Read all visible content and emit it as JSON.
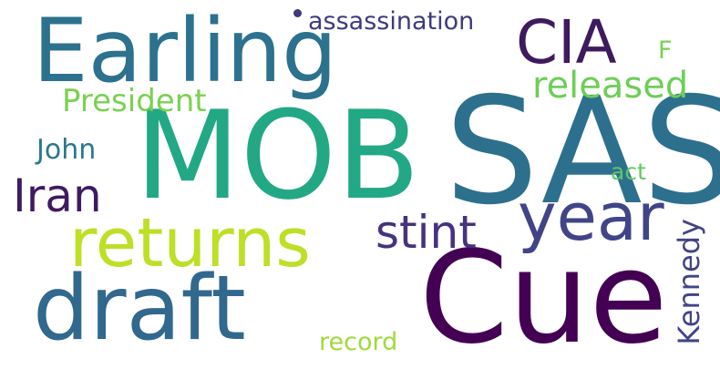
{
  "background": "#ffffff",
  "words": [
    {
      "text": "SAS",
      "color": "#2d708e"
    },
    {
      "text": "MOB",
      "color": "#22a884"
    },
    {
      "text": "Cue",
      "color": "#440154"
    },
    {
      "text": "Earling",
      "color": "#2c728e"
    },
    {
      "text": "draft",
      "color": "#31688e"
    },
    {
      "text": "returns",
      "color": "#bddf26"
    },
    {
      "text": "year",
      "color": "#414487"
    },
    {
      "text": "CIA",
      "color": "#3e1a5e"
    },
    {
      "text": "Iran",
      "color": "#3f1a61"
    },
    {
      "text": "stint",
      "color": "#46327e"
    },
    {
      "text": "released",
      "color": "#6ece58"
    },
    {
      "text": "President",
      "color": "#7ad151"
    },
    {
      "text": "assassination",
      "color": "#3d3a7e"
    },
    {
      "text": "Kennedy",
      "color": "#414487"
    },
    {
      "text": "John",
      "color": "#2a788e"
    },
    {
      "text": "record",
      "color": "#9fda3a"
    },
    {
      "text": "act",
      "color": "#5ec962"
    },
    {
      "text": "F",
      "color": "#7ad151"
    }
  ]
}
